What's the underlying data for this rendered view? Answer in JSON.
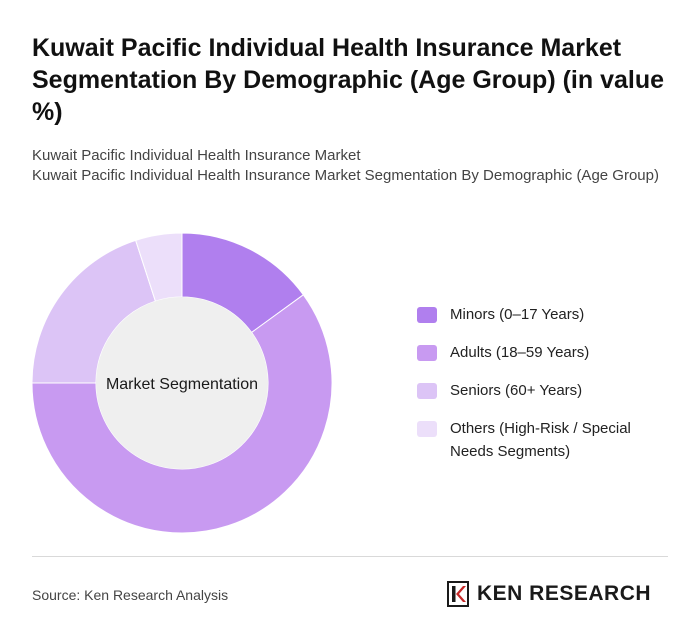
{
  "header": {
    "title": "Kuwait Pacific Individual Health Insurance Market Segmentation By Demographic (Age Group) (in value %)",
    "subtitle_line1": "Kuwait Pacific Individual Health Insurance Market",
    "subtitle_line2": "Kuwait Pacific Individual Health Insurance Market Segmentation By Demographic (Age Group)"
  },
  "chart_data": {
    "type": "pie",
    "variant": "donut",
    "center_label": "Market Segmentation",
    "categories": [
      "Minors (0–17 Years)",
      "Adults (18–59 Years)",
      "Seniors (60+ Years)",
      "Others (High-Risk / Special Needs Segments)"
    ],
    "values": [
      15,
      60,
      20,
      5
    ],
    "unit": "%",
    "colors": [
      "#b07fee",
      "#c89af1",
      "#dcc4f6",
      "#ecdffa"
    ],
    "legend_position": "right"
  },
  "footer": {
    "source": "Source: Ken Research Analysis",
    "brand": "KEN RESEARCH",
    "logo_icon": "ken-research-logo-icon"
  }
}
